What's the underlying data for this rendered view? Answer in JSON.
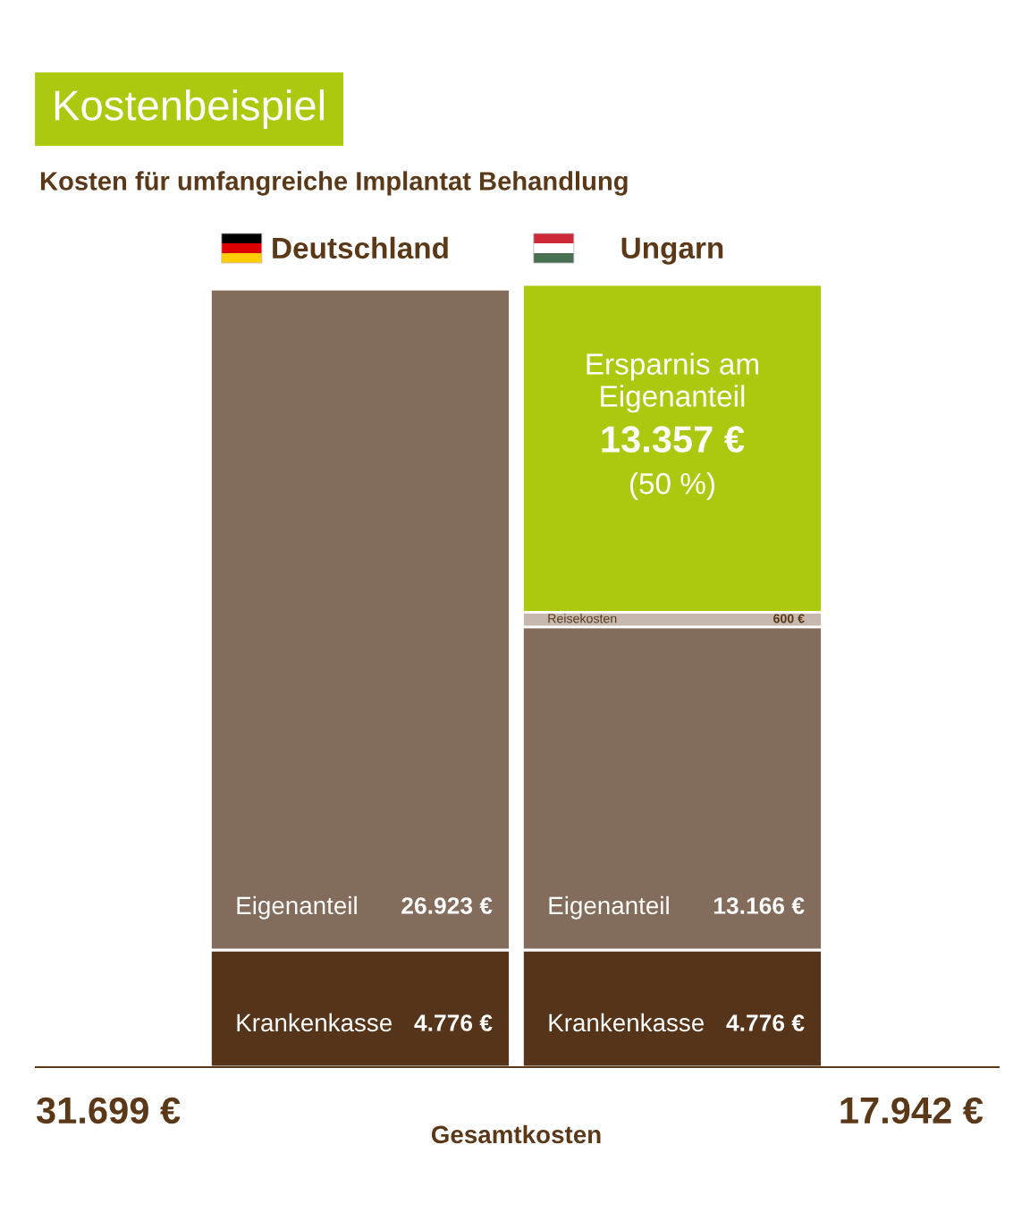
{
  "chart_data": {
    "type": "bar",
    "title": "Kostenbeispiel",
    "subtitle": "Kosten für umfangreiche Implantat Behandlung",
    "categories": [
      "Deutschland",
      "Ungarn"
    ],
    "stacked": true,
    "tick_labels": "x",
    "series": [
      {
        "name": "Krankenkasse",
        "color": "#55341a",
        "values": [
          4776,
          4776
        ],
        "value_labels": [
          "4.776 €",
          "4.776 €"
        ]
      },
      {
        "name": "Eigenanteil",
        "color": "#836c5b",
        "values": [
          26923,
          13166
        ],
        "value_labels": [
          "26.923 €",
          "13.166 €"
        ]
      },
      {
        "name": "Reisekosten",
        "color": "#c6b8ae",
        "values": [
          null,
          600
        ],
        "value_labels": [
          null,
          "600 €"
        ]
      },
      {
        "name": "Ersparnis am Eigenanteil",
        "color": "#adc90f",
        "values": [
          null,
          13357
        ],
        "value_labels": [
          null,
          "13.357 €"
        ]
      }
    ],
    "annotations": [
      "(50 %)",
      "31.699 €",
      "Gesamtkosten",
      "17.942 €"
    ]
  }
}
